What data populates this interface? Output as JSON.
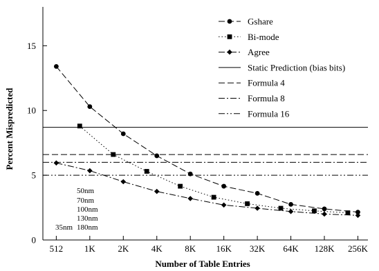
{
  "chart_data": {
    "type": "line",
    "xlabel": "Number of Table Entries",
    "ylabel": "Percent Mispredicted",
    "x_tick_labels": [
      "512",
      "1K",
      "2K",
      "4K",
      "8K",
      "16K",
      "32K",
      "64K",
      "128K",
      "256K"
    ],
    "y_ticks": [
      0,
      5,
      10,
      15
    ],
    "ylim": [
      0,
      18
    ],
    "xlim_log2": [
      8.6,
      18.3
    ],
    "series": [
      {
        "name": "Gshare",
        "style": "dash",
        "marker": "circle",
        "x_log2": [
          9,
          10,
          11,
          12,
          13,
          14,
          15,
          16,
          17,
          18
        ],
        "values": [
          13.4,
          10.3,
          8.2,
          6.5,
          5.1,
          4.15,
          3.6,
          2.75,
          2.4,
          2.15
        ]
      },
      {
        "name": "Bi-mode",
        "style": "dot",
        "marker": "square",
        "x_log2": [
          9.7,
          10.7,
          11.7,
          12.7,
          13.7,
          14.7,
          15.7,
          16.7,
          17.7
        ],
        "values": [
          8.8,
          6.6,
          5.3,
          4.15,
          3.3,
          2.8,
          2.45,
          2.25,
          2.1
        ]
      },
      {
        "name": "Agree",
        "style": "dashdot",
        "marker": "diamond",
        "x_log2": [
          9,
          10,
          11,
          12,
          13,
          14,
          15,
          16,
          17,
          18
        ],
        "values": [
          5.95,
          5.35,
          4.5,
          3.75,
          3.2,
          2.7,
          2.45,
          2.2,
          2.0,
          1.9
        ]
      },
      {
        "name": "Static Prediction (bias bits)",
        "style": "solid",
        "marker": "none",
        "constant": 8.7
      },
      {
        "name": "Formula 4",
        "style": "longdash",
        "marker": "none",
        "constant": 6.6
      },
      {
        "name": "Formula 8",
        "style": "dashdot",
        "marker": "none",
        "constant": 6.0
      },
      {
        "name": "Formula 16",
        "style": "dashdotdot",
        "marker": "none",
        "constant": 5.0
      }
    ],
    "annotations": [
      "50nm",
      "70nm",
      "100nm",
      "130nm",
      "180nm",
      "35nm"
    ],
    "legend_position": "top-right",
    "grid": false
  },
  "colors": {
    "ink": "#000000",
    "background": "#ffffff"
  }
}
